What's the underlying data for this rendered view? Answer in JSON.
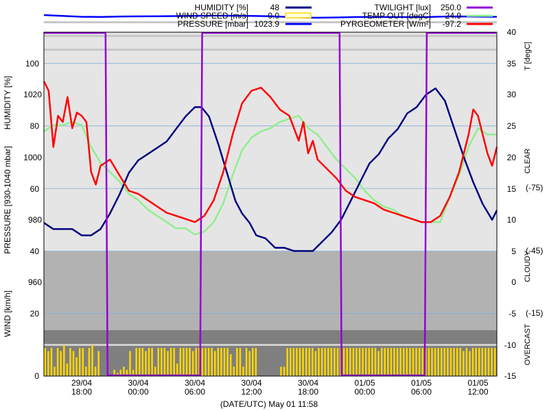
{
  "chart_data": {
    "type": "line",
    "xlabel": "(DATE/UTC) May 01 11:58",
    "x_ticks": [
      {
        "date": "29/04",
        "time": "18:00",
        "hours": 18
      },
      {
        "date": "30/04",
        "time": "00:00",
        "hours": 24
      },
      {
        "date": "30/04",
        "time": "06:00",
        "hours": 30
      },
      {
        "date": "30/04",
        "time": "12:00",
        "hours": 36
      },
      {
        "date": "30/04",
        "time": "18:00",
        "hours": 42
      },
      {
        "date": "01/05",
        "time": "00:00",
        "hours": 48
      },
      {
        "date": "01/05",
        "time": "06:00",
        "hours": 54
      },
      {
        "date": "01/05",
        "time": "12:00",
        "hours": 60
      }
    ],
    "xlim_hours": [
      14,
      62
    ],
    "axes": {
      "humidity": {
        "label": "HUMIDITY [%]",
        "ticks": [
          "100",
          "80",
          "60",
          "40",
          "20",
          "0"
        ]
      },
      "pressure": {
        "label": "PRESSURE [930-1040 mbar]",
        "ticks": [
          "1020",
          "1000",
          "980",
          "960"
        ]
      },
      "wind": {
        "label": "WIND [km/h]",
        "ticks": [
          "20",
          "0"
        ]
      },
      "temperature": {
        "label": "T [degC]",
        "ylim": [
          -15,
          40
        ],
        "ticks": [
          "40",
          "35",
          "30",
          "25",
          "20",
          "15",
          "10",
          "5",
          "0",
          "-5",
          "-10",
          "-15"
        ]
      },
      "sky": {
        "clear": "CLEAR",
        "cloudy": "CLOUDY",
        "overcast": "OVERCAST",
        "pyrgeometer_ticks": [
          "(-75)",
          "(-45)",
          "(-15)"
        ]
      }
    },
    "legend": [
      {
        "name": "HUMIDITY [%]",
        "value": "48",
        "color": "#000080",
        "style": "line"
      },
      {
        "name": "WIND SPEED [m/s]",
        "value": "0.0",
        "color": "#ffd700",
        "style": "box"
      },
      {
        "name": "PRESSURE [mbar]",
        "value": "1023.9",
        "color": "#0000ff",
        "style": "line"
      },
      {
        "name": "TWILIGHT [lux]",
        "value": "250.0",
        "color": "#9400d3",
        "style": "line"
      },
      {
        "name": "TEMP OUT [degC]",
        "value": "24.9",
        "color": "#90ee90",
        "style": "line"
      },
      {
        "name": "PYRGEOMETER [W/m²]",
        "value": "-97.2",
        "color": "#ff0000",
        "style": "line"
      }
    ],
    "series": [
      {
        "name": "HUMIDITY [%]",
        "unit": "%",
        "color": "#000080",
        "points": [
          [
            14,
            49
          ],
          [
            15,
            47
          ],
          [
            16,
            47
          ],
          [
            17,
            47
          ],
          [
            18,
            45
          ],
          [
            19,
            45
          ],
          [
            20,
            47
          ],
          [
            21,
            52
          ],
          [
            22,
            58
          ],
          [
            23,
            65
          ],
          [
            24,
            69
          ],
          [
            25,
            71
          ],
          [
            26,
            73
          ],
          [
            27,
            75
          ],
          [
            28,
            79
          ],
          [
            29,
            83
          ],
          [
            30,
            86
          ],
          [
            30.7,
            86
          ],
          [
            31.5,
            83
          ],
          [
            32.5,
            74
          ],
          [
            33.5,
            64
          ],
          [
            34.3,
            56
          ],
          [
            35,
            52
          ],
          [
            35.8,
            49
          ],
          [
            36.5,
            45
          ],
          [
            37.5,
            44
          ],
          [
            38.5,
            41
          ],
          [
            39.5,
            41
          ],
          [
            40.5,
            40
          ],
          [
            41.5,
            40
          ],
          [
            42.5,
            40
          ],
          [
            43.5,
            43
          ],
          [
            44.5,
            46
          ],
          [
            45.5,
            50
          ],
          [
            46.5,
            56
          ],
          [
            47.5,
            62
          ],
          [
            48.5,
            68
          ],
          [
            49.5,
            71
          ],
          [
            50.5,
            76
          ],
          [
            51.5,
            79
          ],
          [
            52.5,
            84
          ],
          [
            53.5,
            86
          ],
          [
            54.5,
            90
          ],
          [
            55.5,
            92
          ],
          [
            56.5,
            88
          ],
          [
            57.5,
            79
          ],
          [
            58.5,
            70
          ],
          [
            59.5,
            62
          ],
          [
            60.5,
            55
          ],
          [
            61.5,
            50
          ],
          [
            62,
            53
          ]
        ]
      },
      {
        "name": "PRESSURE [mbar]",
        "unit": "mbar",
        "color": "#0000ff",
        "points": [
          [
            14,
            1030.5
          ],
          [
            16,
            1029.2
          ],
          [
            18,
            1028
          ],
          [
            20,
            1027.8
          ],
          [
            22,
            1028.4
          ],
          [
            24,
            1028.6
          ],
          [
            26,
            1028.8
          ],
          [
            28,
            1029
          ],
          [
            30,
            1029.4
          ],
          [
            32,
            1029.6
          ],
          [
            34,
            1029.5
          ],
          [
            36,
            1029.3
          ],
          [
            38,
            1028.7
          ],
          [
            40,
            1027.6
          ],
          [
            42,
            1026.8
          ],
          [
            43,
            1026.6
          ],
          [
            45,
            1027
          ],
          [
            47,
            1027.6
          ],
          [
            49,
            1027.7
          ],
          [
            51,
            1027.6
          ],
          [
            53,
            1027.5
          ],
          [
            55,
            1027.8
          ],
          [
            57,
            1028.5
          ],
          [
            59,
            1028.4
          ],
          [
            61,
            1028
          ],
          [
            62,
            1028
          ]
        ]
      },
      {
        "name": "TEMP OUT [degC]",
        "unit": "degC",
        "color": "#90ee90",
        "points": [
          [
            14,
            24.5
          ],
          [
            15,
            25.5
          ],
          [
            16,
            25.5
          ],
          [
            17,
            26
          ],
          [
            18,
            25.5
          ],
          [
            19,
            22
          ],
          [
            20,
            19.5
          ],
          [
            21,
            18
          ],
          [
            22,
            16.5
          ],
          [
            23,
            14.5
          ],
          [
            24,
            13.5
          ],
          [
            25,
            12
          ],
          [
            26,
            11
          ],
          [
            27,
            10
          ],
          [
            28,
            9
          ],
          [
            29,
            9
          ],
          [
            30,
            8
          ],
          [
            31,
            8.5
          ],
          [
            32,
            10
          ],
          [
            33,
            13
          ],
          [
            34,
            17.5
          ],
          [
            35,
            21.5
          ],
          [
            36,
            23.5
          ],
          [
            37,
            24.5
          ],
          [
            38,
            25
          ],
          [
            39,
            26
          ],
          [
            40,
            26.5
          ],
          [
            41,
            27
          ],
          [
            42,
            25
          ],
          [
            43,
            24
          ],
          [
            44,
            22
          ],
          [
            45,
            20
          ],
          [
            46,
            18.5
          ],
          [
            47,
            17
          ],
          [
            48,
            15
          ],
          [
            49,
            13.5
          ],
          [
            50,
            12.5
          ],
          [
            51,
            12
          ],
          [
            52,
            11
          ],
          [
            53,
            10.5
          ],
          [
            54,
            10
          ],
          [
            55,
            10
          ],
          [
            56,
            10
          ],
          [
            57,
            14
          ],
          [
            58,
            17.5
          ],
          [
            59,
            22
          ],
          [
            60,
            25
          ],
          [
            61,
            24
          ],
          [
            62,
            24
          ]
        ]
      },
      {
        "name": "PYRGEOMETER [W/m²]",
        "unit": "W/m²",
        "color": "#ff0000",
        "points": [
          [
            14,
            32.5
          ],
          [
            14.5,
            31
          ],
          [
            15,
            22
          ],
          [
            15.5,
            27
          ],
          [
            16,
            26
          ],
          [
            16.5,
            30
          ],
          [
            17,
            25
          ],
          [
            17.5,
            27.5
          ],
          [
            18,
            27
          ],
          [
            18.5,
            26
          ],
          [
            19,
            18
          ],
          [
            19.5,
            16
          ],
          [
            20,
            19
          ],
          [
            21,
            20
          ],
          [
            22,
            17.5
          ],
          [
            23,
            15
          ],
          [
            24,
            14.5
          ],
          [
            25,
            13.5
          ],
          [
            26,
            12.5
          ],
          [
            27,
            11.5
          ],
          [
            28,
            11
          ],
          [
            29,
            10.5
          ],
          [
            30,
            10
          ],
          [
            31,
            11
          ],
          [
            32,
            13.5
          ],
          [
            33,
            18
          ],
          [
            34,
            24
          ],
          [
            35,
            29
          ],
          [
            36,
            31
          ],
          [
            37,
            31.5
          ],
          [
            38,
            30
          ],
          [
            39,
            28
          ],
          [
            40,
            27
          ],
          [
            41,
            23
          ],
          [
            41.5,
            26
          ],
          [
            42,
            21
          ],
          [
            42.5,
            23
          ],
          [
            43,
            20
          ],
          [
            44,
            18.5
          ],
          [
            45,
            17
          ],
          [
            46,
            15
          ],
          [
            47,
            14
          ],
          [
            48,
            13.5
          ],
          [
            49,
            13
          ],
          [
            50,
            12
          ],
          [
            51,
            11.5
          ],
          [
            52,
            11
          ],
          [
            53,
            10.5
          ],
          [
            54,
            10
          ],
          [
            55,
            10
          ],
          [
            56,
            11
          ],
          [
            57,
            14
          ],
          [
            58,
            18
          ],
          [
            59,
            24
          ],
          [
            59.5,
            28
          ],
          [
            60,
            27
          ],
          [
            60.5,
            24
          ],
          [
            61,
            21
          ],
          [
            61.5,
            19
          ],
          [
            62,
            22
          ]
        ]
      },
      {
        "name": "TWILIGHT [lux]",
        "unit": "lux",
        "color": "#9400d3",
        "intervals_high": [
          [
            14,
            20.6
          ],
          [
            30.7,
            45.4
          ],
          [
            54.5,
            62
          ]
        ]
      }
    ],
    "wind_bars": {
      "name": "WIND SPEED [m/s]",
      "color": "#ffd700",
      "values_kmh": [
        9,
        8,
        9,
        3,
        9,
        8,
        10,
        4,
        9,
        8,
        6,
        9,
        9,
        3,
        9,
        10,
        3,
        8,
        0,
        0,
        0,
        0,
        2,
        1,
        2,
        3,
        2,
        8,
        2,
        9,
        9,
        9,
        8,
        9,
        9,
        3,
        9,
        9,
        9,
        8,
        9,
        9,
        4,
        9,
        9,
        9,
        9,
        8,
        9,
        9,
        9,
        9,
        9,
        9,
        8,
        9,
        9,
        9,
        9,
        7,
        3,
        9,
        9,
        3,
        9,
        8,
        9,
        9,
        0,
        0,
        0,
        0,
        0,
        0,
        0,
        3,
        3,
        9,
        9,
        9,
        9,
        9,
        9,
        9,
        9,
        9,
        8,
        9,
        9,
        9,
        9,
        9,
        9,
        9,
        9,
        9,
        9,
        9,
        9,
        9,
        9,
        9,
        9,
        9,
        9,
        9,
        8,
        9,
        9,
        9,
        9,
        9,
        9,
        9,
        9,
        9,
        9,
        9,
        9,
        9,
        9,
        9,
        9,
        9,
        9,
        9,
        9,
        9,
        9,
        9,
        9,
        9,
        9,
        8,
        9,
        8,
        9,
        9,
        9,
        9,
        9,
        9,
        9,
        9
      ]
    }
  }
}
